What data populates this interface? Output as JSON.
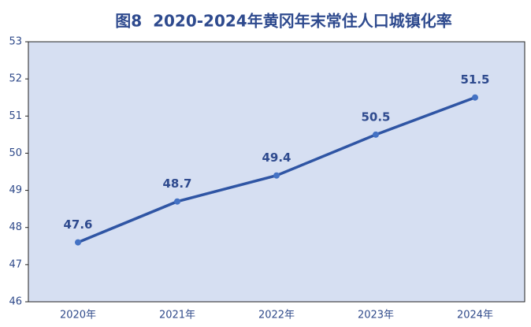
{
  "chart_data": {
    "type": "line",
    "title": "图8  2020-2024年黄冈年末常住人口城镇化率",
    "categories": [
      "2020年",
      "2021年",
      "2022年",
      "2023年",
      "2024年"
    ],
    "series": [
      {
        "name": "城镇化率",
        "color": "#2f55a4",
        "values": [
          47.6,
          48.7,
          49.4,
          50.5,
          51.5
        ]
      }
    ],
    "ylim": [
      46,
      53
    ],
    "yticks": [
      46,
      47,
      48,
      49,
      50,
      51,
      52,
      53
    ]
  }
}
